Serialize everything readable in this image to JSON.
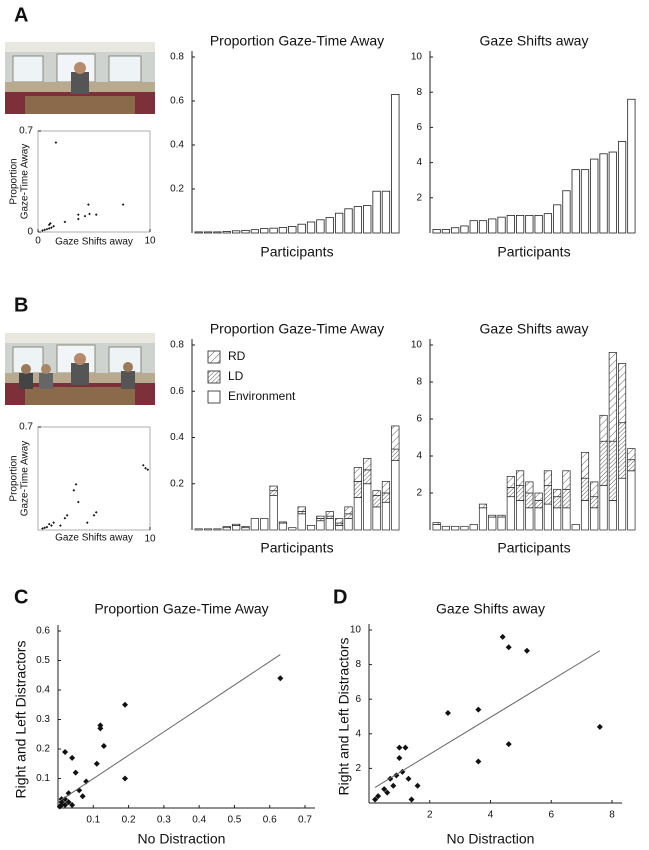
{
  "panels": [
    "A",
    "B",
    "C",
    "D"
  ],
  "chart_data": [
    {
      "type": "scatter",
      "ylabel": [
        "Proportion",
        "Gaze-Time Away"
      ],
      "xlabel": "Gaze Shifts away",
      "x": [
        1.6,
        0.4,
        0.6,
        0.8,
        1.0,
        1.2,
        1.4,
        1.0,
        2.4,
        3.6,
        3.6,
        4.2,
        4.5,
        4.6,
        5.2,
        7.6,
        1.1
      ],
      "y": [
        0.62,
        0.01,
        0.015,
        0.02,
        0.025,
        0.03,
        0.04,
        0.05,
        0.07,
        0.09,
        0.12,
        0.11,
        0.19,
        0.125,
        0.12,
        0.19,
        0.06
      ],
      "xlim": [
        0,
        10
      ],
      "ylim": [
        0,
        0.7
      ],
      "xticks": [
        0,
        10
      ],
      "yticks": [
        0,
        0.7
      ]
    },
    {
      "type": "bar",
      "title": "Proportion Gaze-Time Away",
      "xlabel": "Participants",
      "values": [
        0.005,
        0.005,
        0.005,
        0.007,
        0.01,
        0.012,
        0.015,
        0.02,
        0.022,
        0.025,
        0.03,
        0.04,
        0.05,
        0.06,
        0.07,
        0.09,
        0.11,
        0.12,
        0.125,
        0.19,
        0.19,
        0.63
      ],
      "color": "#ffffff",
      "ylim": [
        0,
        0.8
      ],
      "yticks": [
        0.2,
        0.4,
        0.6,
        0.8
      ]
    },
    {
      "type": "bar",
      "title": "Gaze Shifts away",
      "xlabel": "Participants",
      "values": [
        0.2,
        0.2,
        0.3,
        0.4,
        0.7,
        0.7,
        0.8,
        0.9,
        1,
        1,
        1,
        1,
        1.1,
        1.6,
        2.4,
        3.6,
        3.6,
        4.2,
        4.5,
        4.6,
        5.2,
        7.6
      ],
      "color": "#ffffff",
      "ylim": [
        0,
        10
      ],
      "yticks": [
        2,
        4,
        6,
        8,
        10
      ]
    },
    {
      "type": "scatter",
      "ylabel": [
        "Proportion",
        "Gaze-Time Away"
      ],
      "xlabel": "Gaze Shifts away",
      "x": [
        9.6,
        9.8,
        9.4,
        3.2,
        3.4,
        3.6,
        2.6,
        2.4,
        1.4,
        1.2,
        0.4,
        0.6,
        0.8,
        1.0,
        5.0,
        5.2,
        4.4,
        2.0
      ],
      "y": [
        0.42,
        0.41,
        0.44,
        0.27,
        0.31,
        0.19,
        0.1,
        0.08,
        0.05,
        0.03,
        0.01,
        0.015,
        0.02,
        0.04,
        0.1,
        0.12,
        0.05,
        0.03
      ],
      "xlim": [
        0,
        10
      ],
      "ylim": [
        0,
        0.7
      ],
      "xticks": [
        10
      ],
      "yticks": [
        0.7
      ]
    },
    {
      "type": "stacked_bar",
      "title": "Proportion Gaze-Time Away",
      "xlabel": "Participants",
      "legend": "upper left",
      "series": [
        {
          "name": "Environment",
          "color": "#ffffff",
          "hatch": "none",
          "values": [
            0.005,
            0.005,
            0.005,
            0.01,
            0.02,
            0.01,
            0.05,
            0.05,
            0.15,
            0.03,
            0.01,
            0.07,
            0.02,
            0.04,
            0.05,
            0.02,
            0.05,
            0.14,
            0.2,
            0.1,
            0.12,
            0.3
          ]
        },
        {
          "name": "LD",
          "color": "#ffffff",
          "hatch": "narrow",
          "values": [
            0,
            0,
            0,
            0,
            0,
            0,
            0,
            0,
            0.02,
            0,
            0,
            0.01,
            0,
            0.01,
            0.01,
            0.01,
            0.02,
            0.07,
            0.06,
            0.05,
            0.04,
            0.05
          ]
        },
        {
          "name": "RD",
          "color": "#ffffff",
          "hatch": "wide",
          "values": [
            0,
            0,
            0,
            0.005,
            0.005,
            0.005,
            0,
            0,
            0.02,
            0.005,
            0,
            0.02,
            0,
            0.01,
            0.02,
            0.02,
            0.03,
            0.06,
            0.05,
            0.02,
            0.05,
            0.1
          ]
        }
      ],
      "ylim": [
        0,
        0.8
      ],
      "yticks": [
        0.2,
        0.4,
        0.6,
        0.8
      ]
    },
    {
      "type": "stacked_bar",
      "title": "Gaze Shifts away",
      "xlabel": "Participants",
      "legend": "none",
      "series": [
        {
          "name": "Environment",
          "color": "#ffffff",
          "hatch": "none",
          "values": [
            0.3,
            0.2,
            0.2,
            0.2,
            0.3,
            1.2,
            0.7,
            0.7,
            1.8,
            1.6,
            1.2,
            1.2,
            1.4,
            1.2,
            1.2,
            0.3,
            1.6,
            1.2,
            2.4,
            1.6,
            2.8,
            3.2
          ]
        },
        {
          "name": "LD",
          "color": "#ffffff",
          "hatch": "narrow",
          "values": [
            0,
            0,
            0,
            0,
            0,
            0,
            0,
            0,
            0.5,
            0.8,
            0.8,
            0.4,
            1.0,
            0.6,
            1.0,
            0,
            1.2,
            0.6,
            2.4,
            3.2,
            3.0,
            0.6
          ]
        },
        {
          "name": "RD",
          "color": "#ffffff",
          "hatch": "wide",
          "values": [
            0.1,
            0,
            0,
            0,
            0,
            0.2,
            0.1,
            0.1,
            0.6,
            0.8,
            0.6,
            0.4,
            0.8,
            0.4,
            1.0,
            0,
            1.4,
            0.8,
            1.4,
            4.8,
            3.2,
            0.6
          ]
        }
      ],
      "ylim": [
        0,
        10
      ],
      "yticks": [
        2,
        4,
        6,
        8,
        10
      ]
    },
    {
      "type": "scatter",
      "title": "Proportion Gaze-Time Away",
      "xlabel": "No Distraction",
      "ylabel": "Right and Left Distractors",
      "x": [
        0.63,
        0.19,
        0.19,
        0.12,
        0.12,
        0.13,
        0.11,
        0.02,
        0.04,
        0.05,
        0.08,
        0.06,
        0.07,
        0.03,
        0.02,
        0.01,
        0.01,
        0.02,
        0.03,
        0.04,
        0.005,
        0.01
      ],
      "y": [
        0.44,
        0.35,
        0.1,
        0.28,
        0.27,
        0.21,
        0.15,
        0.19,
        0.17,
        0.12,
        0.09,
        0.06,
        0.04,
        0.05,
        0.03,
        0.02,
        0.01,
        0.01,
        0.02,
        0.01,
        0.005,
        0.03
      ],
      "trendline": {
        "x": [
          0,
          0.63
        ],
        "y": [
          0.02,
          0.52
        ]
      },
      "xlim": [
        0,
        0.7
      ],
      "ylim": [
        0,
        0.6
      ],
      "xticks": [
        0.1,
        0.2,
        0.3,
        0.4,
        0.5,
        0.6,
        0.7
      ],
      "yticks": [
        0.1,
        0.2,
        0.3,
        0.4,
        0.5,
        0.6
      ]
    },
    {
      "type": "scatter",
      "title": "Gaze Shifts away",
      "xlabel": "No Distraction",
      "ylabel": "Right and Left Distractors",
      "x": [
        7.6,
        4.4,
        4.6,
        5.2,
        4.6,
        3.6,
        3.6,
        2.6,
        1.6,
        1.4,
        1.2,
        1.0,
        1.0,
        1.1,
        0.9,
        0.8,
        0.7,
        0.6,
        0.5,
        0.3,
        0.2,
        1.3
      ],
      "y": [
        4.4,
        9.6,
        9.0,
        8.8,
        3.4,
        5.4,
        2.4,
        5.2,
        1.0,
        0.2,
        3.2,
        3.2,
        2.6,
        1.8,
        1.6,
        1.0,
        1.4,
        0.6,
        0.8,
        0.4,
        0.2,
        1.4
      ],
      "trendline": {
        "x": [
          0.2,
          7.6
        ],
        "y": [
          0.9,
          8.8
        ]
      },
      "xlim": [
        0,
        8
      ],
      "ylim": [
        0,
        10
      ],
      "xticks": [
        2,
        4,
        6,
        8
      ],
      "yticks": [
        2,
        4,
        6,
        8,
        10
      ]
    }
  ]
}
